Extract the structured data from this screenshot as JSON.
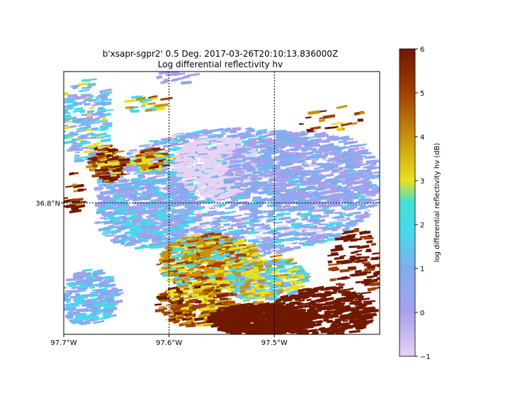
{
  "chart_data": {
    "type": "heatmap",
    "title_line1": "b'xsapr-sgpr2' 0.5 Deg. 2017-03-26T20:10:13.836000Z",
    "title_line2": "Log differential reflectivity hv",
    "x_tick_labels": [
      "97.7°W",
      "97.6°W",
      "97.5°W"
    ],
    "x_ticks": [
      -97.7,
      -97.6,
      -97.5
    ],
    "xlim": [
      -97.7,
      -97.4
    ],
    "y_tick_labels": [
      "36.8°N"
    ],
    "y_ticks": [
      36.8
    ],
    "ylim": [
      36.675,
      36.925
    ],
    "grid": "dotted at tick positions",
    "colorbar": {
      "label": "log differential reflectivity hv (dB)",
      "range": [
        -1,
        6
      ],
      "ticks": [
        -1,
        0,
        1,
        2,
        3,
        4,
        5,
        6
      ],
      "tick_labels": [
        "−1",
        "0",
        "1",
        "2",
        "3",
        "4",
        "5",
        "6"
      ],
      "colors": [
        "#e4d4f4",
        "#a8a0ec",
        "#80acee",
        "#48d8ec",
        "#e8e020",
        "#c89010",
        "#a04000",
        "#701800"
      ]
    }
  }
}
